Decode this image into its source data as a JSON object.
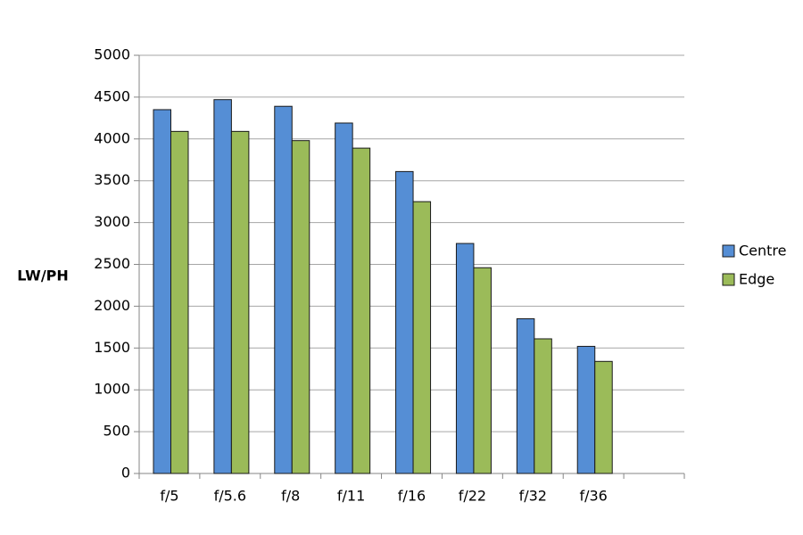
{
  "chart_data": {
    "type": "bar",
    "y_label": "LW/PH",
    "categories": [
      "f/5",
      "f/5.6",
      "f/8",
      "f/11",
      "f/16",
      "f/22",
      "f/32",
      "f/36",
      null
    ],
    "series": [
      {
        "name": "Centre",
        "color": "#558ed5",
        "values": [
          4350,
          4470,
          4390,
          4190,
          3610,
          2750,
          1850,
          1520,
          null
        ]
      },
      {
        "name": "Edge",
        "color": "#9bbb59",
        "values": [
          4090,
          4090,
          3980,
          3890,
          3250,
          2460,
          1610,
          1340,
          null
        ]
      }
    ],
    "ylim": [
      0,
      5000
    ],
    "yticks": [
      0,
      500,
      1000,
      1500,
      2000,
      2500,
      3000,
      3500,
      4000,
      4500,
      5000
    ],
    "grid": true,
    "legend": "right"
  }
}
